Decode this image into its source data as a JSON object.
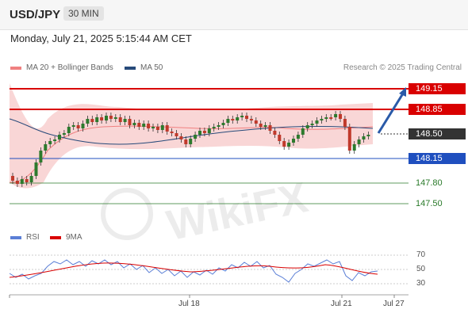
{
  "header": {
    "symbol": "USD/JPY",
    "timeframe": "30 MIN"
  },
  "datetime": "Monday, July 21, 2025 5:15:44 AM CET",
  "legend": {
    "bb_label": "MA 20 + Bollinger Bands",
    "ma50_label": "MA 50",
    "credit": "Research © 2025 Trading Central"
  },
  "levels": [
    {
      "label": "149.15",
      "style": "red"
    },
    {
      "label": "148.85",
      "style": "red"
    },
    {
      "label": "148.50",
      "style": "dark"
    },
    {
      "label": "148.15",
      "style": "blue"
    },
    {
      "label": "147.80",
      "style": "plain"
    },
    {
      "label": "147.50",
      "style": "plain"
    }
  ],
  "rsi": {
    "label": "RSI",
    "ma_label": "9MA",
    "ticks": [
      "70",
      "50",
      "30"
    ]
  },
  "xaxis": {
    "labels": [
      "Jul 18",
      "Jul 21",
      "Jul 27"
    ]
  },
  "watermark": "WikiFX",
  "colors": {
    "bb": "#f08080",
    "ma50": "#274a7a",
    "red": "#d90000",
    "blue": "#1f4fbf",
    "green": "#2a7a2a",
    "rsi": "#5b7fd6",
    "rsima": "#d90000"
  }
}
